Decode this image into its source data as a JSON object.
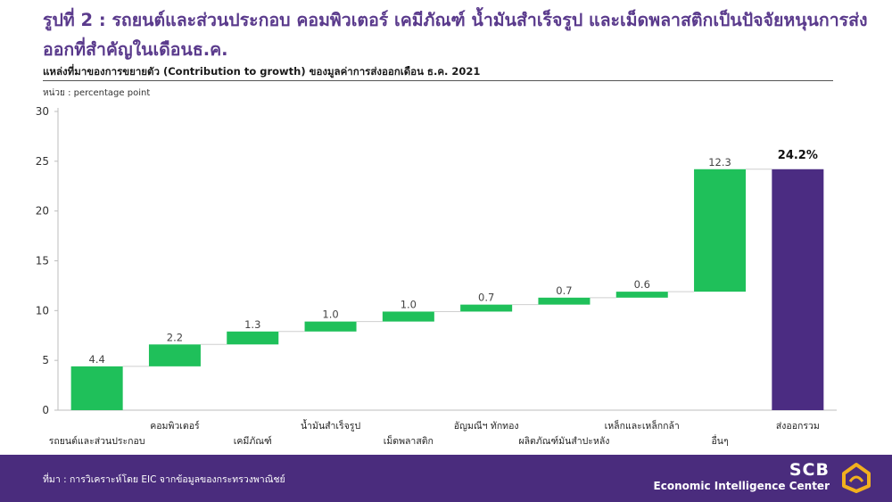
{
  "header": {
    "title": "รูปที่ 2 : รถยนต์และส่วนประกอบ คอมพิวเตอร์ เคมีภัณฑ์ น้ำมันสำเร็จรูป และเม็ดพลาสติกเป็นปัจจัยหนุนการส่งออกที่สำคัญในเดือนธ.ค.",
    "subtitle": "แหล่งที่มาของการขยายตัว (Contribution to growth) ของมูลค่าการส่งออกเดือน ธ.ค. 2021",
    "unit": "หน่วย : percentage  point"
  },
  "chart_data": {
    "type": "bar",
    "subtype": "waterfall",
    "categories": [
      "รถยนต์และส่วนประกอบ",
      "คอมพิวเตอร์",
      "เคมีภัณฑ์",
      "น้ำมันสำเร็จรูป",
      "เม็ดพลาสติก",
      "อัญมณีฯ ทักทอง",
      "ผลิตภัณฑ์มันสำปะหลัง",
      "เหล็กและเหล็กกล้า",
      "อื่นๆ",
      "ส่งออกรวม"
    ],
    "values": [
      4.4,
      2.2,
      1.3,
      1.0,
      1.0,
      0.7,
      0.7,
      0.6,
      12.3,
      24.2
    ],
    "value_labels": [
      "4.4",
      "2.2",
      "1.3",
      "1.0",
      "1.0",
      "0.7",
      "0.7",
      "0.6",
      "12.3",
      "24.2%"
    ],
    "bases": [
      0,
      4.4,
      6.6,
      7.9,
      8.9,
      9.9,
      10.6,
      11.3,
      11.9,
      0
    ],
    "total_index": 9,
    "ylim": [
      0,
      30
    ],
    "yticks": [
      0,
      5,
      10,
      15,
      20,
      25,
      30
    ],
    "grid": false,
    "legend": "none",
    "colors": {
      "component": "#1fc05a",
      "total": "#4b2c82",
      "axis": "#bdbdbd",
      "connector": "#cfcfcf",
      "label": "#444444",
      "total_label": "#111111"
    }
  },
  "footer": {
    "source": "ที่มา : การวิเคราะห์โดย EIC จากข้อมูลของกระทรวงพาณิชย์",
    "brand_name": "SCB",
    "brand_tagline": "Economic Intelligence Center",
    "logo_icon": "scb-lotus-icon",
    "logo_color": "#f2b01e",
    "background": "#4a2c7d"
  }
}
